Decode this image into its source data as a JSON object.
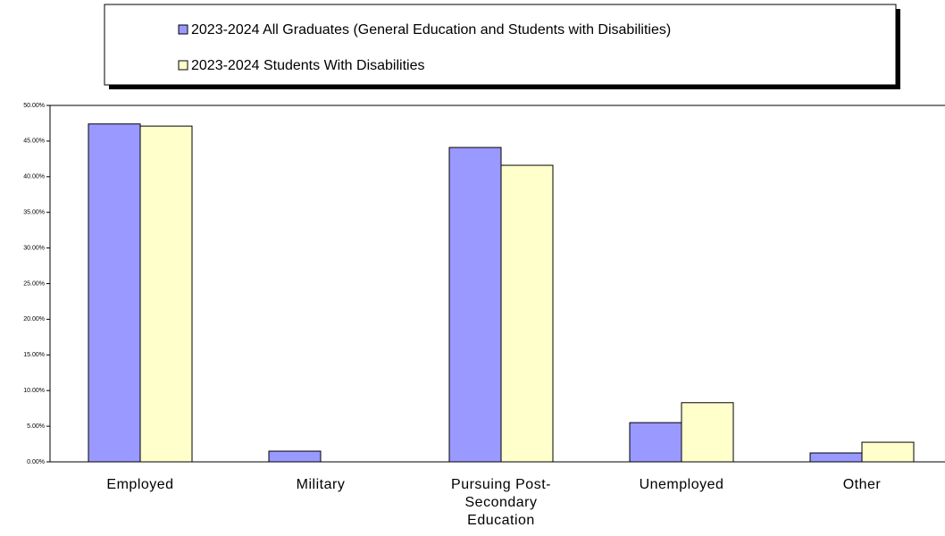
{
  "chart_data": {
    "type": "bar",
    "categories": [
      "Employed",
      "Military",
      "Pursuing Post-Secondary Education",
      "Unemployed",
      "Other"
    ],
    "series": [
      {
        "name": "2023-2024 All Graduates (General Education and Students with Disabilities)",
        "color": "#9999ff",
        "values": [
          47.4,
          1.5,
          44.1,
          5.5,
          1.25
        ]
      },
      {
        "name": "2023-2024 Students With Disabilities",
        "color": "#ffffcc",
        "values": [
          47.1,
          0,
          41.6,
          8.3,
          2.75
        ]
      }
    ],
    "ylim": [
      0,
      50
    ],
    "yticks": [
      {
        "value": 0,
        "label": "0.00%"
      },
      {
        "value": 5,
        "label": "5.00%"
      },
      {
        "value": 10,
        "label": "10.00%"
      },
      {
        "value": 15,
        "label": "15.00%"
      },
      {
        "value": 20,
        "label": "20.00%"
      },
      {
        "value": 25,
        "label": "25.00%"
      },
      {
        "value": 30,
        "label": "30.00%"
      },
      {
        "value": 35,
        "label": "35.00%"
      },
      {
        "value": 40,
        "label": "40.00%"
      },
      {
        "value": 45,
        "label": "45.00%"
      },
      {
        "value": 50,
        "label": "50.00%"
      }
    ],
    "legend": "top"
  }
}
